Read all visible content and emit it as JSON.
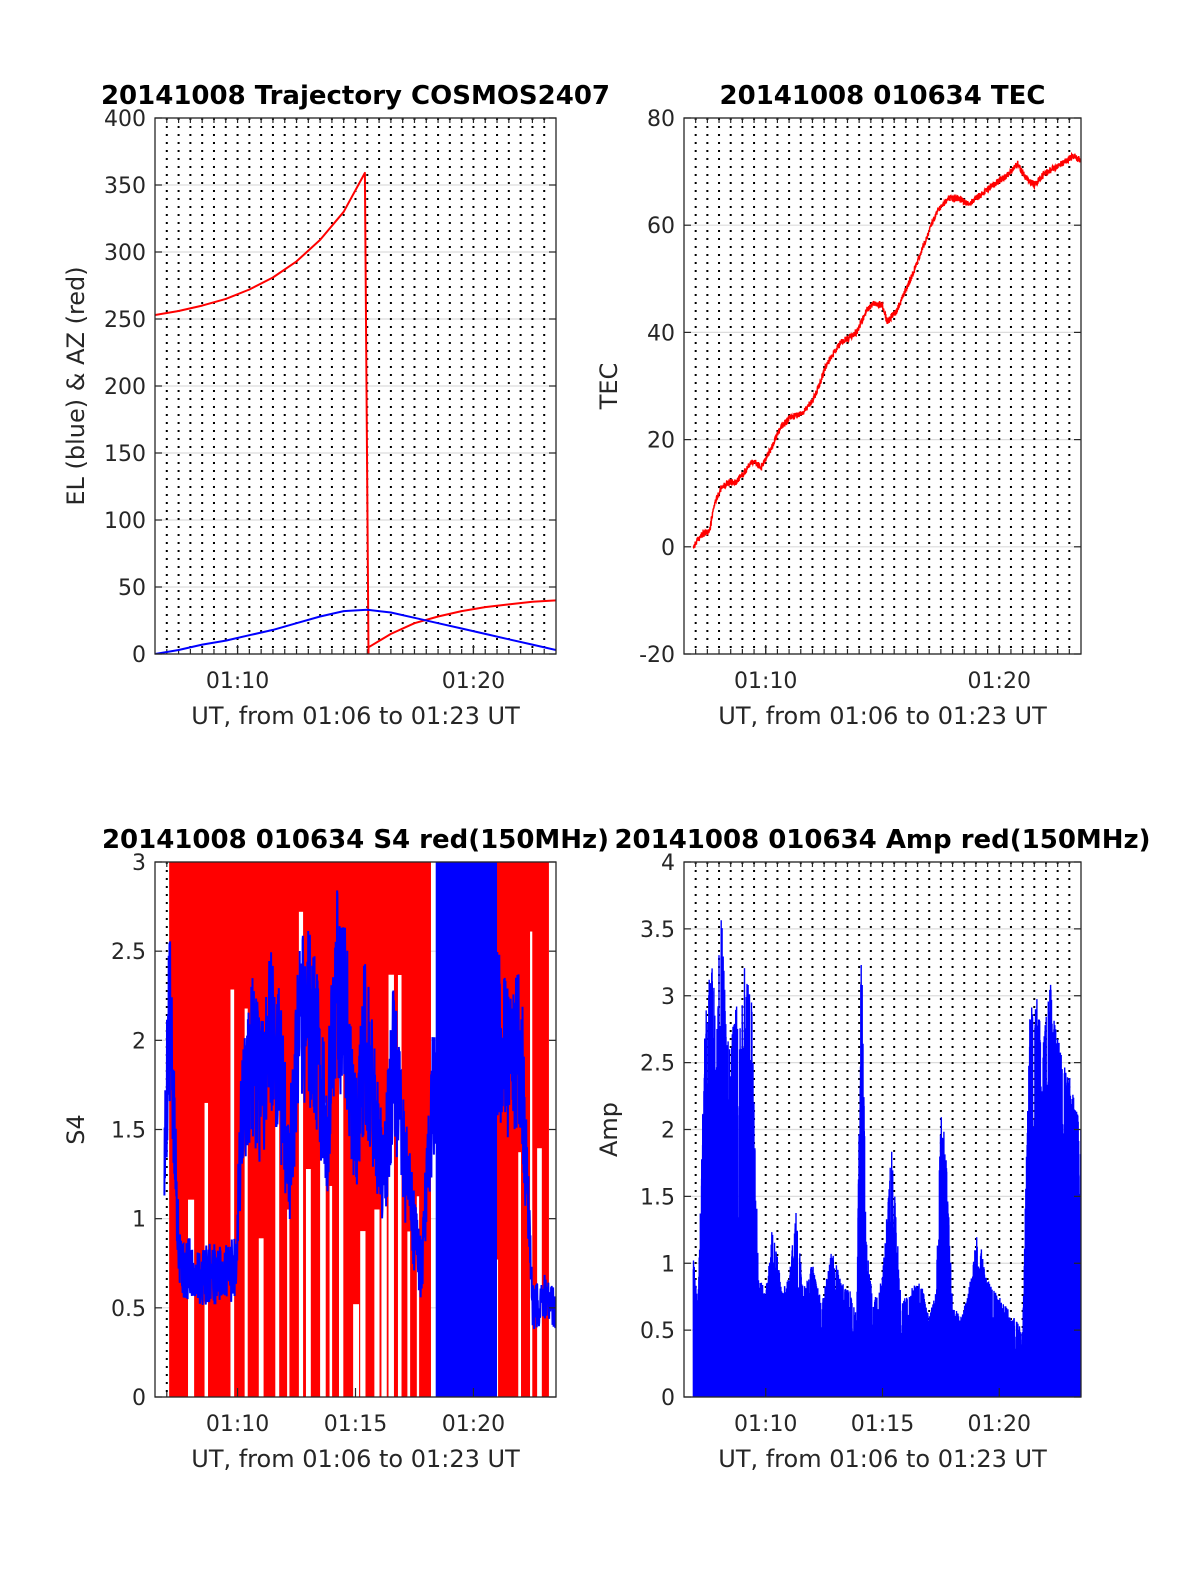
{
  "colors": {
    "red": "#ff0000",
    "blue": "#0000ff",
    "grid": "#dcdcdc",
    "axis": "#262626"
  },
  "chart_data": [
    {
      "type": "line",
      "title": "20141008 Trajectory COSMOS2407",
      "xlabel": "UT, from 01:06 to 01:23 UT",
      "ylabel": "EL (blue) & AZ (red)",
      "xlim_min": [
        66.5,
        83.5
      ],
      "ylim": [
        0,
        400
      ],
      "yticks": [
        "0",
        "50",
        "100",
        "150",
        "200",
        "250",
        "300",
        "350",
        "400"
      ],
      "xticks": [
        {
          "t": 70,
          "label": "01:10"
        },
        {
          "t": 80,
          "label": "01:20"
        }
      ],
      "grid": "horizontal solid, vertical dotted every 30 s",
      "series": [
        {
          "color": "#ff0000",
          "x": [
            66.5,
            67.5,
            68.5,
            69.5,
            70.5,
            71.5,
            72.5,
            73.5,
            74.5,
            75.4,
            75.55,
            76.5,
            77.5,
            78.5,
            79.5,
            80.5,
            81.5,
            82.5,
            83.5
          ],
          "y": [
            253,
            256,
            260,
            265,
            272,
            281,
            293,
            309,
            330,
            359,
            5,
            15,
            23,
            28,
            32,
            35,
            37,
            39,
            40
          ]
        },
        {
          "color": "#0000ff",
          "x": [
            66.5,
            67.5,
            68.5,
            69.5,
            70.5,
            71.5,
            72.5,
            73.5,
            74.5,
            75.5,
            76.5,
            77.5,
            78.5,
            79.5,
            80.5,
            81.5,
            82.5,
            83.5
          ],
          "y": [
            0,
            3,
            7,
            10,
            14,
            18,
            23,
            28,
            32,
            33,
            31,
            27,
            23,
            19,
            15,
            11,
            7,
            3
          ]
        }
      ]
    },
    {
      "type": "line",
      "title": "20141008 010634 TEC",
      "xlabel": "UT, from 01:06 to 01:23 UT",
      "ylabel": "TEC",
      "xlim_min": [
        66.5,
        83.5
      ],
      "ylim": [
        -20,
        80
      ],
      "yticks": [
        "-20",
        "0",
        "20",
        "40",
        "60",
        "80"
      ],
      "xticks": [
        {
          "t": 70,
          "label": "01:10"
        },
        {
          "t": 80,
          "label": "01:20"
        }
      ],
      "series": [
        {
          "color": "#ff0000",
          "x": [
            66.9,
            67.2,
            67.6,
            67.8,
            68.1,
            68.4,
            68.7,
            69.1,
            69.4,
            69.8,
            70.2,
            70.6,
            71.0,
            71.6,
            72.1,
            72.6,
            73.2,
            73.9,
            74.3,
            74.6,
            75.0,
            75.2,
            75.6,
            76.0,
            76.5,
            77.0,
            77.4,
            77.8,
            78.2,
            78.7,
            79.3,
            79.9,
            80.4,
            80.8,
            81.1,
            81.5,
            81.9,
            82.5,
            83.2,
            83.5
          ],
          "y": [
            0,
            2,
            3,
            8,
            11,
            12,
            12,
            14,
            16,
            15,
            18,
            22,
            24,
            25,
            28,
            34,
            38,
            40,
            44,
            45.5,
            45,
            42,
            44,
            48,
            53,
            59,
            63,
            65,
            65,
            64,
            66,
            68,
            69.5,
            71.5,
            69,
            67.5,
            69.5,
            71,
            73,
            72
          ]
        }
      ]
    },
    {
      "type": "line",
      "title": "20141008 010634 S4 red(150MHz)",
      "xlabel": "UT, from 01:06 to 01:23 UT",
      "ylabel": "S4",
      "xlim_min": [
        66.5,
        83.5
      ],
      "ylim": [
        0,
        3
      ],
      "yticks": [
        "0",
        "0.5",
        "1",
        "1.5",
        "2",
        "2.5",
        "3"
      ],
      "xticks": [
        {
          "t": 70,
          "label": "01:10"
        },
        {
          "t": 75,
          "label": "01:15"
        },
        {
          "t": 80,
          "label": "01:20"
        }
      ],
      "red_band_ranges": [
        [
          67.1,
          78.2
        ],
        [
          78.6,
          83.2
        ]
      ],
      "series": [
        {
          "color": "#0000ff",
          "x": [
            66.9,
            67.1,
            67.3,
            67.5,
            67.7,
            68.0,
            68.4,
            68.8,
            69.2,
            69.6,
            69.9,
            70.2,
            70.6,
            71.0,
            71.4,
            71.8,
            72.2,
            72.6,
            73.0,
            73.4,
            73.8,
            74.2,
            74.6,
            75.0,
            75.4,
            75.8,
            76.2,
            76.6,
            77.0,
            77.4,
            77.8,
            78.2,
            78.6,
            79.0,
            79.3,
            79.6,
            79.9,
            80.2,
            80.6,
            81.0,
            81.5,
            82.0,
            82.5,
            83.0,
            83.5
          ],
          "y": [
            1.3,
            2.2,
            1.5,
            0.9,
            0.7,
            0.72,
            0.66,
            0.7,
            0.68,
            0.7,
            0.72,
            1.6,
            1.9,
            1.7,
            2.1,
            1.8,
            1.3,
            2.0,
            2.2,
            1.9,
            1.5,
            2.3,
            2.1,
            1.5,
            2.0,
            1.6,
            1.2,
            1.9,
            1.4,
            1.0,
            0.7,
            1.6,
            1.8,
            1.5,
            1.3,
            2.2,
            2.4,
            2.0,
            1.7,
            2.1,
            1.8,
            2.0,
            0.5,
            0.55,
            0.5
          ]
        }
      ]
    },
    {
      "type": "line",
      "title": "20141008 010634 Amp red(150MHz)",
      "xlabel": "UT, from 01:06 to 01:23 UT",
      "ylabel": "Amp",
      "xlim_min": [
        66.5,
        83.5
      ],
      "ylim": [
        0,
        4
      ],
      "yticks": [
        "0",
        "0.5",
        "1",
        "1.5",
        "2",
        "2.5",
        "3",
        "3.5",
        "4"
      ],
      "xticks": [
        {
          "t": 70,
          "label": "01:10"
        },
        {
          "t": 75,
          "label": "01:15"
        },
        {
          "t": 80,
          "label": "01:20"
        }
      ],
      "series": [
        {
          "color": "#0000ff",
          "x": [
            66.9,
            67.1,
            67.4,
            67.7,
            67.9,
            68.1,
            68.3,
            68.5,
            68.7,
            68.9,
            69.1,
            69.4,
            69.7,
            70.0,
            70.3,
            70.7,
            71.0,
            71.3,
            71.6,
            72.0,
            72.4,
            72.8,
            73.2,
            73.6,
            73.9,
            74.1,
            74.3,
            74.6,
            75.0,
            75.4,
            75.8,
            76.2,
            76.6,
            77.0,
            77.3,
            77.5,
            77.7,
            78.0,
            78.4,
            78.8,
            79.1,
            79.4,
            79.8,
            80.2,
            80.6,
            81.0,
            81.3,
            81.6,
            81.9,
            82.2,
            82.6,
            83.0,
            83.5
          ],
          "y": [
            1.05,
            0.7,
            2.8,
            3.4,
            3.0,
            3.7,
            2.9,
            2.6,
            3.0,
            2.8,
            3.3,
            3.0,
            0.9,
            0.8,
            1.3,
            0.8,
            0.9,
            1.4,
            0.8,
            1.0,
            0.7,
            1.1,
            0.9,
            0.8,
            0.6,
            3.6,
            1.2,
            0.7,
            0.9,
            1.9,
            0.7,
            0.8,
            0.9,
            0.6,
            0.8,
            2.2,
            1.9,
            0.7,
            0.6,
            0.9,
            1.3,
            0.9,
            0.8,
            0.7,
            0.6,
            0.5,
            2.9,
            3.0,
            2.7,
            3.1,
            2.6,
            2.4,
            2.0
          ]
        }
      ]
    }
  ]
}
